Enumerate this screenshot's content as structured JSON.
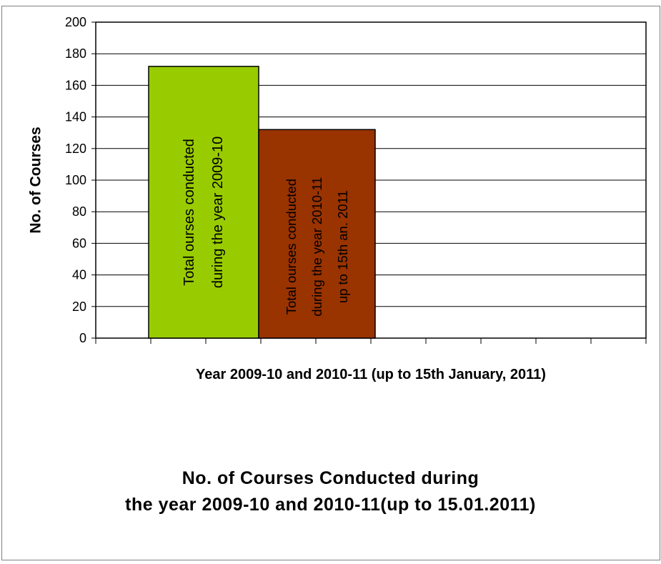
{
  "chart_data": {
    "type": "bar",
    "title_lines": [
      "No. of Courses Conducted during",
      "the year 2009-10 and 2010-11(up to 15.01.2011)"
    ],
    "xlabel": "Year 2009-10 and 2010-11 (up to 15th January, 2011)",
    "ylabel": "No. of Courses",
    "ylim": [
      0,
      200
    ],
    "yticks": [
      0,
      20,
      40,
      60,
      80,
      100,
      120,
      140,
      160,
      180,
      200
    ],
    "grid": true,
    "series": [
      {
        "label_lines": [
          "Total   ourses conducted",
          "during the year 2009-10"
        ],
        "value": 172,
        "color": "#99cc00"
      },
      {
        "label_lines": [
          "Total   ourses conducted",
          "during the year 2010-11",
          "up to 15th  an.  2011"
        ],
        "value": 132,
        "color": "#993300"
      }
    ]
  }
}
